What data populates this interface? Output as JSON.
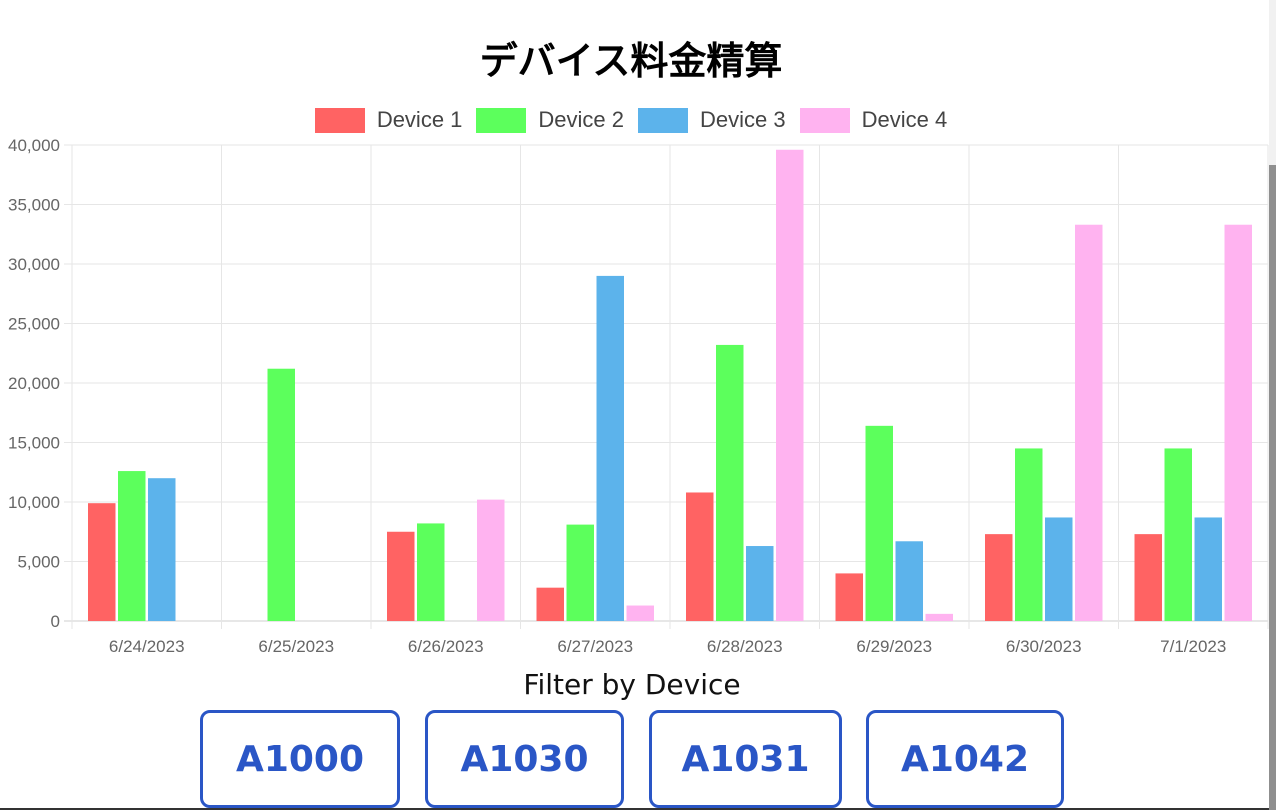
{
  "chart_data": {
    "type": "bar",
    "title": "デバイス料金精算",
    "categories": [
      "6/24/2023",
      "6/25/2023",
      "6/26/2023",
      "6/27/2023",
      "6/28/2023",
      "6/29/2023",
      "6/30/2023",
      "7/1/2023"
    ],
    "series": [
      {
        "name": "Device 1",
        "color": "#ff6363",
        "values": [
          9900,
          0,
          7500,
          2800,
          10800,
          4000,
          7300,
          7300
        ]
      },
      {
        "name": "Device 2",
        "color": "#5cff5c",
        "values": [
          12600,
          21200,
          8200,
          8100,
          23200,
          16400,
          14500,
          14500
        ]
      },
      {
        "name": "Device 3",
        "color": "#5cb3eb",
        "values": [
          12000,
          0,
          0,
          29000,
          6300,
          6700,
          8700,
          8700
        ]
      },
      {
        "name": "Device 4",
        "color": "#ffb3f0",
        "values": [
          0,
          0,
          10200,
          1300,
          39600,
          600,
          33300,
          33300
        ]
      }
    ],
    "yticks": [
      "0",
      "5,000",
      "10,000",
      "15,000",
      "20,000",
      "25,000",
      "30,000",
      "35,000",
      "40,000"
    ],
    "ylim": [
      0,
      40000
    ],
    "grid": true,
    "legend_position": "top"
  },
  "filter": {
    "label": "Filter by Device",
    "buttons": [
      "A1000",
      "A1030",
      "A1031",
      "A1042"
    ],
    "color": "#2a56c6"
  }
}
